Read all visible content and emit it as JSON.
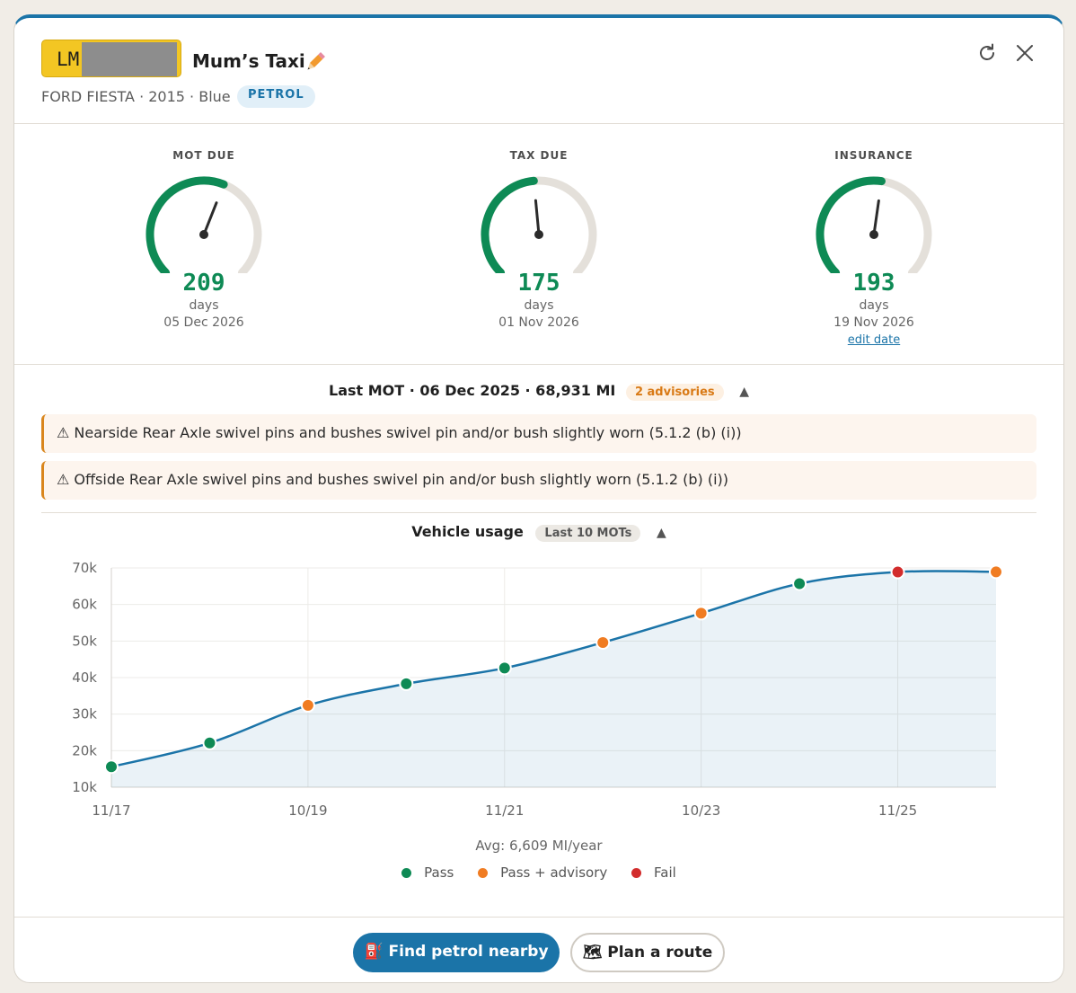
{
  "vehicle": {
    "plate": "LM",
    "name": "Mum’s Taxi",
    "meta": "FORD FIESTA · 2015 · Blue",
    "fuel": "PETROL"
  },
  "icons": {
    "edit": "pencil-icon",
    "refresh": "refresh-icon",
    "close": "close-icon",
    "warning": "warning-icon",
    "fuel": "fuel-pump-icon",
    "route": "map-icon"
  },
  "gauges": [
    {
      "label": "MOT DUE",
      "days": "209",
      "unit": "days",
      "date": "05 Dec 2026",
      "fraction": 0.58
    },
    {
      "label": "TAX DUE",
      "days": "175",
      "unit": "days",
      "date": "01 Nov 2026",
      "fraction": 0.48
    },
    {
      "label": "INSURANCE",
      "days": "193",
      "unit": "days",
      "date": "19 Nov 2026",
      "fraction": 0.53,
      "link": "edit date"
    }
  ],
  "last_mot": {
    "summary": "Last MOT · 06 Dec 2025 · 68,931 MI",
    "badge": "2 advisories",
    "toggle": "▲",
    "advisories": [
      "⚠ Nearside Rear Axle swivel pins and bushes swivel pin and/or bush slightly worn (5.1.2 (b) (i))",
      "⚠ Offside Rear Axle swivel pins and bushes swivel pin and/or bush slightly worn (5.1.2 (b) (i))"
    ]
  },
  "usage": {
    "title": "Vehicle usage",
    "tag": "Last 10 MOTs",
    "toggle": "▲",
    "avg": "Avg: 6,609 MI/year",
    "legend": [
      "Pass",
      "Pass + advisory",
      "Fail"
    ]
  },
  "colors": {
    "accent": "#1b74a8",
    "pass": "#0e8a55",
    "advisory": "#f07c22",
    "fail": "#d22c2c",
    "gauge_fill": "#0e8a55",
    "gauge_track": "#e4e0da"
  },
  "chart_data": {
    "type": "line",
    "title": "Vehicle usage",
    "xlabel": "",
    "ylabel": "",
    "x_ticks": [
      "11/17",
      "10/19",
      "11/21",
      "10/23",
      "11/25"
    ],
    "y_ticks": [
      "10k",
      "20k",
      "30k",
      "40k",
      "50k",
      "60k",
      "70k"
    ],
    "ylim": [
      10000,
      70000
    ],
    "grid": true,
    "legend_position": "bottom",
    "series": [
      {
        "points": [
          {
            "x": "11/17",
            "y": 15600,
            "result": "pass"
          },
          {
            "x": "11/18",
            "y": 22100,
            "result": "pass"
          },
          {
            "x": "10/19",
            "y": 32400,
            "result": "advisory"
          },
          {
            "x": "10/20",
            "y": 38300,
            "result": "pass"
          },
          {
            "x": "11/21",
            "y": 42600,
            "result": "pass"
          },
          {
            "x": "11/22",
            "y": 49600,
            "result": "advisory"
          },
          {
            "x": "10/23",
            "y": 57600,
            "result": "advisory"
          },
          {
            "x": "11/24",
            "y": 65700,
            "result": "pass"
          },
          {
            "x": "11/25",
            "y": 68900,
            "result": "fail"
          },
          {
            "x": "12/25",
            "y": 68931,
            "result": "advisory"
          }
        ]
      }
    ]
  },
  "actions": {
    "primary": "⛽ Find petrol nearby",
    "secondary": "🗺 Plan a route"
  }
}
